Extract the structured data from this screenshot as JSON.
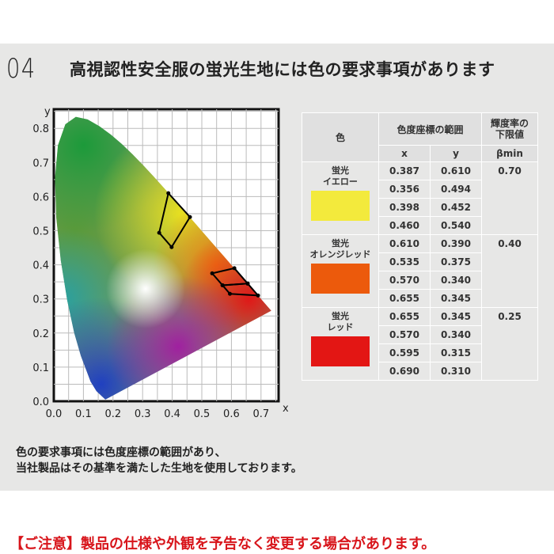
{
  "header": {
    "number": "04",
    "title": "高視認性安全服の蛍光生地には色の要求事項があります"
  },
  "table": {
    "col_color": "色",
    "col_coords": "色度座標の範囲",
    "col_x": "x",
    "col_y": "y",
    "col_lum_1": "輝度率の",
    "col_lum_2": "下限値",
    "col_beta": "βmin",
    "rows": [
      {
        "name_1": "蛍光",
        "name_2": "イエロー",
        "color": "#f3ea3c",
        "beta": "0.70",
        "x": [
          "0.387",
          "0.356",
          "0.398",
          "0.460"
        ],
        "y": [
          "0.610",
          "0.494",
          "0.452",
          "0.540"
        ]
      },
      {
        "name_1": "蛍光",
        "name_2": "オレンジレッド",
        "color": "#ec5a0c",
        "beta": "0.40",
        "x": [
          "0.610",
          "0.535",
          "0.570",
          "0.655"
        ],
        "y": [
          "0.390",
          "0.375",
          "0.340",
          "0.345"
        ]
      },
      {
        "name_1": "蛍光",
        "name_2": "レッド",
        "color": "#e31614",
        "beta": "0.25",
        "x": [
          "0.655",
          "0.570",
          "0.595",
          "0.690"
        ],
        "y": [
          "0.345",
          "0.340",
          "0.315",
          "0.310"
        ]
      }
    ]
  },
  "chart_data": {
    "type": "scatter",
    "xlabel": "x",
    "ylabel": "y",
    "xlim": [
      0,
      0.7
    ],
    "ylim": [
      0,
      0.8
    ],
    "x_ticks": [
      "0.0",
      "0.1",
      "0.2",
      "0.3",
      "0.4",
      "0.5",
      "0.6",
      "0.7"
    ],
    "y_ticks": [
      "0.0",
      "0.1",
      "0.2",
      "0.3",
      "0.4",
      "0.5",
      "0.6",
      "0.7",
      "0.8"
    ],
    "grid": true,
    "polygons": [
      {
        "points": [
          [
            0.387,
            0.61
          ],
          [
            0.356,
            0.494
          ],
          [
            0.398,
            0.452
          ],
          [
            0.46,
            0.54
          ]
        ]
      },
      {
        "points": [
          [
            0.61,
            0.39
          ],
          [
            0.535,
            0.375
          ],
          [
            0.57,
            0.34
          ],
          [
            0.655,
            0.345
          ]
        ]
      },
      {
        "points": [
          [
            0.655,
            0.345
          ],
          [
            0.57,
            0.34
          ],
          [
            0.595,
            0.315
          ],
          [
            0.69,
            0.31
          ]
        ]
      }
    ]
  },
  "description": {
    "line1": "色の要求事項には色度座標の範囲があり、",
    "line2": "当社製品はその基準を満たした生地を使用しております。"
  },
  "notice": "【ご注意】製品の仕様や外観を予告なく変更する場合があります。"
}
